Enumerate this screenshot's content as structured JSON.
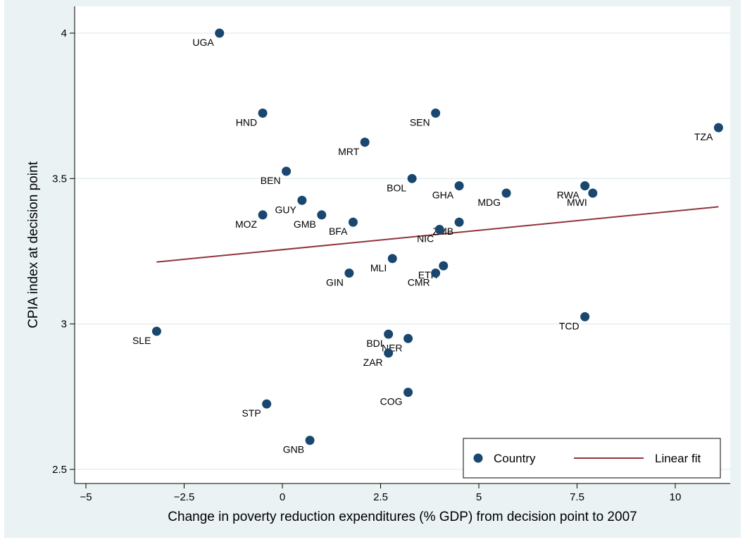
{
  "chart_data": {
    "type": "scatter",
    "title": "",
    "xlabel": "Change in poverty reduction expenditures (% GDP) from decision point to 2007",
    "ylabel": "CPIA index at decision point",
    "xlim": [
      -5.8,
      11.3
    ],
    "ylim": [
      2.45,
      4.08
    ],
    "xticks": [
      -5,
      -2.5,
      0,
      2.5,
      5,
      7.5,
      10
    ],
    "xtick_labels": [
      "−5",
      "−2.5",
      "0",
      "2.5",
      "5",
      "7.5",
      "10"
    ],
    "yticks": [
      2.5,
      3,
      3.5,
      4
    ],
    "ytick_labels": [
      "2.5",
      "3",
      "3.5",
      "4"
    ],
    "grid": true,
    "legend_position": "bottom-right",
    "series": [
      {
        "name": "Country",
        "color": "#1a476f",
        "points": [
          {
            "label": "UGA",
            "x": -1.6,
            "y": 4.0,
            "pos": "left-below"
          },
          {
            "label": "HND",
            "x": -0.5,
            "y": 3.725,
            "pos": "left-below"
          },
          {
            "label": "SEN",
            "x": 3.9,
            "y": 3.725,
            "pos": "left-below"
          },
          {
            "label": "TZA",
            "x": 11.1,
            "y": 3.675,
            "pos": "left-below"
          },
          {
            "label": "MRT",
            "x": 2.1,
            "y": 3.625,
            "pos": "left-below"
          },
          {
            "label": "BEN",
            "x": 0.1,
            "y": 3.525,
            "pos": "left-below"
          },
          {
            "label": "BOL",
            "x": 3.3,
            "y": 3.5,
            "pos": "left-below"
          },
          {
            "label": "GHA",
            "x": 4.5,
            "y": 3.475,
            "pos": "left-below"
          },
          {
            "label": "MDG",
            "x": 5.7,
            "y": 3.45,
            "pos": "left-below"
          },
          {
            "label": "RWA",
            "x": 7.7,
            "y": 3.475,
            "pos": "left-below"
          },
          {
            "label": "MWI",
            "x": 7.9,
            "y": 3.45,
            "pos": "left-below"
          },
          {
            "label": "GUY",
            "x": 0.5,
            "y": 3.425,
            "pos": "left-below"
          },
          {
            "label": "MOZ",
            "x": -0.5,
            "y": 3.375,
            "pos": "left-below"
          },
          {
            "label": "GMB",
            "x": 1.0,
            "y": 3.375,
            "pos": "left-below"
          },
          {
            "label": "BFA",
            "x": 1.8,
            "y": 3.35,
            "pos": "left-below"
          },
          {
            "label": "ZMB",
            "x": 4.5,
            "y": 3.35,
            "pos": "left-below"
          },
          {
            "label": "NIC",
            "x": 4.0,
            "y": 3.325,
            "pos": "left-below"
          },
          {
            "label": "MLI",
            "x": 2.8,
            "y": 3.225,
            "pos": "left-below"
          },
          {
            "label": "ETH",
            "x": 4.1,
            "y": 3.2,
            "pos": "left-below"
          },
          {
            "label": "GIN",
            "x": 1.7,
            "y": 3.175,
            "pos": "left-below"
          },
          {
            "label": "CMR",
            "x": 3.9,
            "y": 3.175,
            "pos": "left-below"
          },
          {
            "label": "TCD",
            "x": 7.7,
            "y": 3.025,
            "pos": "left-below"
          },
          {
            "label": "SLE",
            "x": -3.2,
            "y": 2.975,
            "pos": "left-below"
          },
          {
            "label": "BDI",
            "x": 2.7,
            "y": 2.965,
            "pos": "left-below"
          },
          {
            "label": "NER",
            "x": 3.2,
            "y": 2.95,
            "pos": "left-below"
          },
          {
            "label": "ZAR",
            "x": 2.7,
            "y": 2.9,
            "pos": "left-below"
          },
          {
            "label": "COG",
            "x": 3.2,
            "y": 2.765,
            "pos": "left-below"
          },
          {
            "label": "STP",
            "x": -0.4,
            "y": 2.725,
            "pos": "left-below"
          },
          {
            "label": "GNB",
            "x": 0.7,
            "y": 2.6,
            "pos": "left-below"
          }
        ]
      },
      {
        "name": "Linear fit",
        "type": "line",
        "color": "#90353b",
        "x": [
          -3.2,
          11.1
        ],
        "values": [
          3.213,
          3.403
        ]
      }
    ],
    "legend": [
      {
        "label": "Country",
        "marker": "circle",
        "color": "#1a476f"
      },
      {
        "label": "Linear fit",
        "marker": "line",
        "color": "#90353b"
      }
    ]
  }
}
